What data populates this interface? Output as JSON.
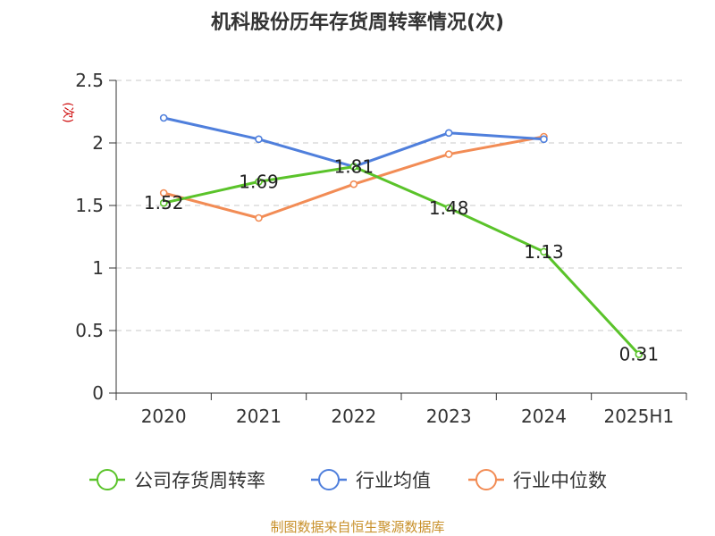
{
  "chart_data": {
    "type": "line",
    "title": "机科股份历年存货周转率情况(次)",
    "ylabel": "(次)",
    "xlabel": "",
    "categories": [
      "2020",
      "2021",
      "2022",
      "2023",
      "2024",
      "2025H1"
    ],
    "ylim": [
      0,
      2.5
    ],
    "yticks": [
      "0",
      "0.5",
      "1",
      "1.5",
      "2",
      "2.5"
    ],
    "grid": true,
    "legend_position": "bottom",
    "series": [
      {
        "name": "公司存货周转率",
        "color": "#5ac32a",
        "values": [
          1.52,
          1.69,
          1.81,
          1.48,
          1.13,
          0.31
        ],
        "labels": [
          "1.52",
          "1.69",
          "1.81",
          "1.48",
          "1.13",
          "0.31"
        ]
      },
      {
        "name": "行业均值",
        "color": "#4f7fdc",
        "values": [
          2.2,
          2.03,
          1.81,
          2.08,
          2.03,
          null
        ]
      },
      {
        "name": "行业中位数",
        "color": "#f28c55",
        "values": [
          1.6,
          1.4,
          1.67,
          1.91,
          2.05,
          null
        ]
      }
    ]
  },
  "source": "制图数据来自恒生聚源数据库"
}
